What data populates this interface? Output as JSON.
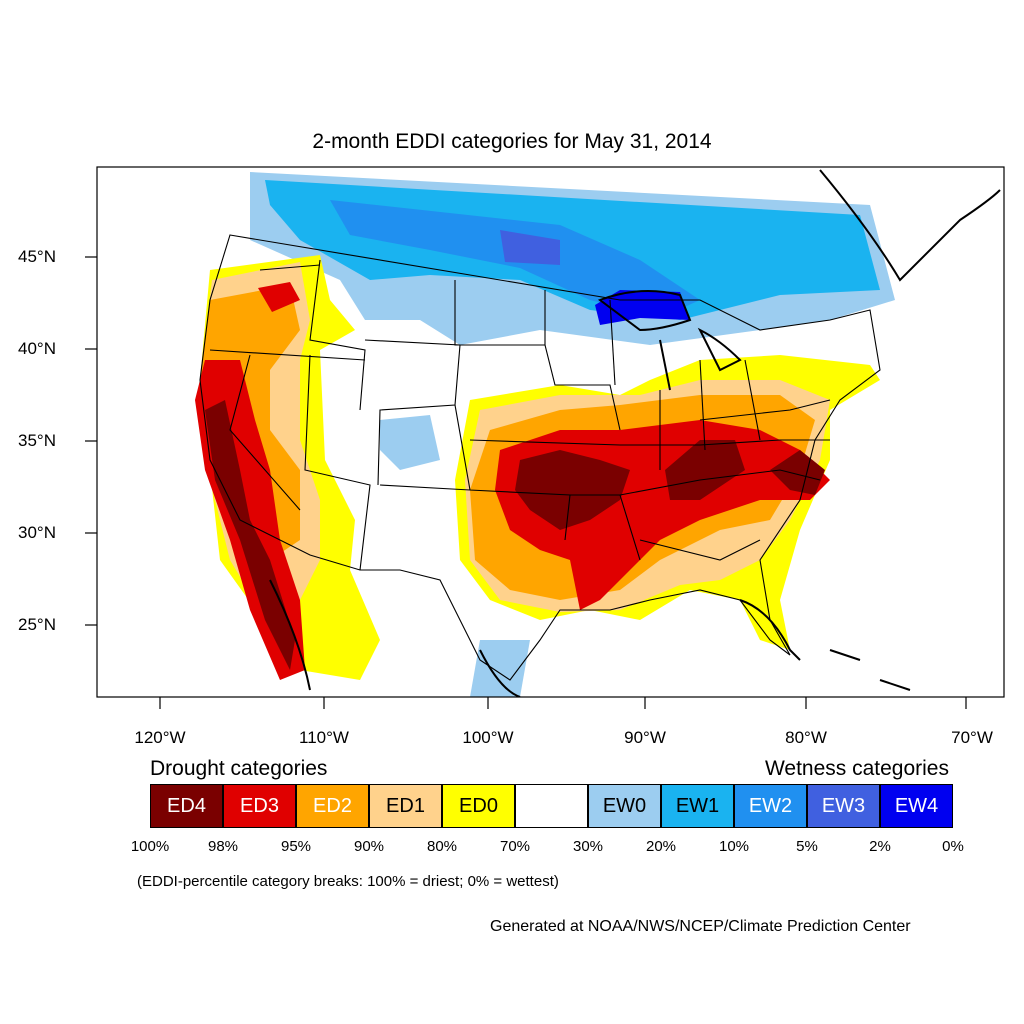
{
  "title": "2-month EDDI categories for May 31, 2014",
  "lat_labels": [
    "45°N",
    "40°N",
    "35°N",
    "30°N",
    "25°N"
  ],
  "lon_labels": [
    "120°W",
    "110°W",
    "100°W",
    "90°W",
    "80°W",
    "70°W"
  ],
  "legend": {
    "drought_heading": "Drought categories",
    "wetness_heading": "Wetness categories",
    "categories": [
      {
        "label": "ED4",
        "color": "#7a0000",
        "text_color": "#ffffff"
      },
      {
        "label": "ED3",
        "color": "#e00000",
        "text_color": "#ffffff"
      },
      {
        "label": "ED2",
        "color": "#ffa500",
        "text_color": "#ffffff"
      },
      {
        "label": "ED1",
        "color": "#ffd28c",
        "text_color": "#000000"
      },
      {
        "label": "ED0",
        "color": "#ffff00",
        "text_color": "#000000"
      },
      {
        "label": "",
        "color": "#ffffff",
        "text_color": "#000000"
      },
      {
        "label": "EW0",
        "color": "#9ccdf0",
        "text_color": "#000000"
      },
      {
        "label": "EW1",
        "color": "#1ab3f0",
        "text_color": "#000000"
      },
      {
        "label": "EW2",
        "color": "#2090f0",
        "text_color": "#ffffff"
      },
      {
        "label": "EW3",
        "color": "#4060e0",
        "text_color": "#ffffff"
      },
      {
        "label": "EW4",
        "color": "#0000f0",
        "text_color": "#ffffff"
      }
    ],
    "breaks": [
      "100%",
      "98%",
      "95%",
      "90%",
      "80%",
      "70%",
      "30%",
      "20%",
      "10%",
      "5%",
      "2%",
      "0%"
    ]
  },
  "note": "(EDDI-percentile category breaks: 100% = driest; 0% = wettest)",
  "credit": "Generated at NOAA/NWS/NCEP/Climate Prediction Center"
}
